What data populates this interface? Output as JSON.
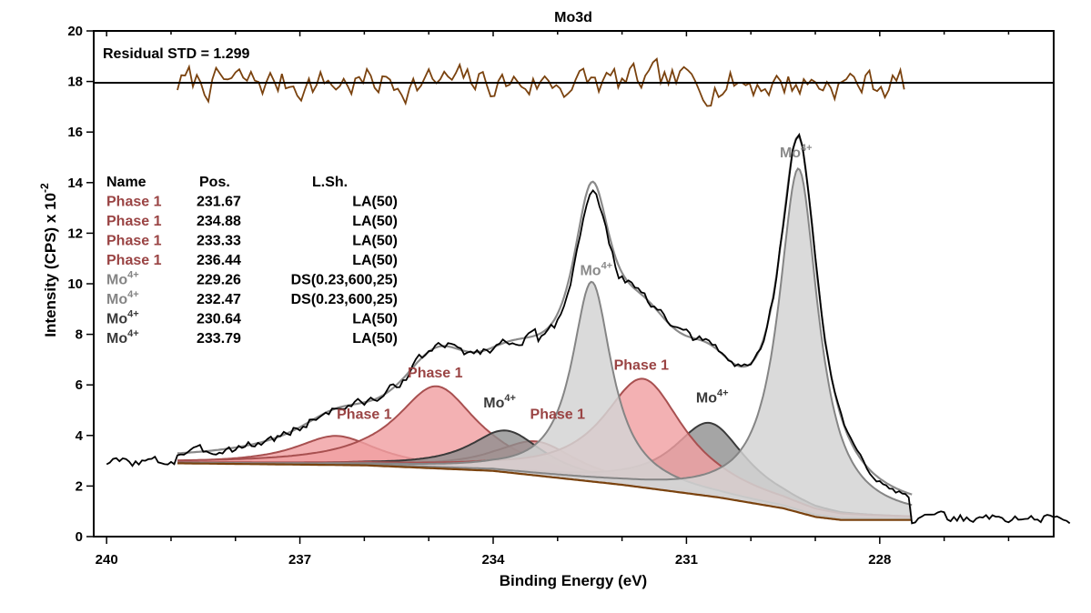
{
  "chart_data": {
    "type": "line",
    "title": "Mo3d",
    "xlabel": "Binding Energy (eV)",
    "ylabel_main": "Intensity (CPS) x 10",
    "ylabel_exp": "-2",
    "xlim": [
      240.2,
      225.3
    ],
    "ylim": [
      0,
      20
    ],
    "x_ticks": [
      240,
      237,
      234,
      231,
      228
    ],
    "x_minor_step": 1,
    "y_ticks": [
      0,
      2,
      4,
      6,
      8,
      10,
      12,
      14,
      16,
      18,
      20
    ],
    "residual_label": "Residual STD = 1.299",
    "residual_baseline": 17.95,
    "residual_range": [
      238.9,
      227.6
    ],
    "residual_seed": 7,
    "fit_range": [
      238.9,
      227.5
    ],
    "baseline_points": [
      [
        238.9,
        2.9
      ],
      [
        236.0,
        2.82
      ],
      [
        234.0,
        2.6
      ],
      [
        232.0,
        2.05
      ],
      [
        230.5,
        1.55
      ],
      [
        229.5,
        1.12
      ],
      [
        229.0,
        0.78
      ],
      [
        228.6,
        0.66
      ],
      [
        227.5,
        0.66
      ]
    ],
    "raw_range": [
      240.0,
      225.0
    ],
    "raw_seed": 3,
    "colors": {
      "phase1_fill": "#f0a0a2",
      "phase1_edge": "#a85050",
      "phase1_text": "#9a4444",
      "mo4_light_fill": "#d3d3d3",
      "mo4_light_edge": "#858585",
      "mo4_dark_fill": "#8e8e8e",
      "mo4_dark_edge": "#3a3a3a",
      "raw": "#000000",
      "envelope": "#8a8a8a",
      "residual": "#7a420e",
      "baseline": "#7a420e"
    },
    "components": [
      {
        "name": "Phase 1",
        "pos": 231.67,
        "fwhm": 1.55,
        "height": 4.3,
        "style": "phase1"
      },
      {
        "name": "Phase 1",
        "pos": 234.88,
        "fwhm": 1.55,
        "height": 3.25,
        "style": "phase1"
      },
      {
        "name": "Phase 1",
        "pos": 233.33,
        "fwhm": 1.55,
        "height": 1.35,
        "style": "phase1"
      },
      {
        "name": "Phase 1",
        "pos": 236.44,
        "fwhm": 1.55,
        "height": 1.15,
        "style": "phase1"
      },
      {
        "name": "Mo4+",
        "pos": 229.26,
        "fwhm": 0.75,
        "height": 13.6,
        "style": "mo4_light"
      },
      {
        "name": "Mo4+",
        "pos": 232.47,
        "fwhm": 0.75,
        "height": 7.9,
        "style": "mo4_light"
      },
      {
        "name": "Mo4+",
        "pos": 230.64,
        "fwhm": 1.4,
        "height": 2.9,
        "style": "mo4_dark"
      },
      {
        "name": "Mo4+",
        "pos": 233.79,
        "fwhm": 1.4,
        "height": 1.65,
        "style": "mo4_dark"
      }
    ]
  },
  "legend": {
    "headers": [
      "Name",
      "Pos.",
      "L.Sh."
    ],
    "rows": [
      {
        "base": "Phase 1",
        "sup": "",
        "pos": "231.67",
        "lsh": "LA(50)",
        "color": "#9a4444"
      },
      {
        "base": "Phase 1",
        "sup": "",
        "pos": "234.88",
        "lsh": "LA(50)",
        "color": "#9a4444"
      },
      {
        "base": "Phase 1",
        "sup": "",
        "pos": "233.33",
        "lsh": "LA(50)",
        "color": "#9a4444"
      },
      {
        "base": "Phase 1",
        "sup": "",
        "pos": "236.44",
        "lsh": "LA(50)",
        "color": "#9a4444"
      },
      {
        "base": "Mo",
        "sup": "4+",
        "pos": "229.26",
        "lsh": "DS(0.23,600,25)",
        "color": "#858585"
      },
      {
        "base": "Mo",
        "sup": "4+",
        "pos": "232.47",
        "lsh": "DS(0.23,600,25)",
        "color": "#858585"
      },
      {
        "base": "Mo",
        "sup": "4+",
        "pos": "230.64",
        "lsh": "LA(50)",
        "color": "#3a3a3a"
      },
      {
        "base": "Mo",
        "sup": "4+",
        "pos": "233.79",
        "lsh": "LA(50)",
        "color": "#3a3a3a"
      }
    ]
  },
  "annotations": [
    {
      "base": "Phase 1",
      "sup": "",
      "x": 236.0,
      "y": 4.65,
      "color": "#9a4444"
    },
    {
      "base": "Phase 1",
      "sup": "",
      "x": 234.9,
      "y": 6.3,
      "color": "#9a4444"
    },
    {
      "base": "Phase 1",
      "sup": "",
      "x": 233.0,
      "y": 4.65,
      "color": "#9a4444"
    },
    {
      "base": "Phase 1",
      "sup": "",
      "x": 231.7,
      "y": 6.6,
      "color": "#9a4444"
    },
    {
      "base": "Mo",
      "sup": "4+",
      "x": 233.9,
      "y": 5.1,
      "color": "#3a3a3a"
    },
    {
      "base": "Mo",
      "sup": "4+",
      "x": 230.6,
      "y": 5.3,
      "color": "#3a3a3a"
    },
    {
      "base": "Mo",
      "sup": "4+",
      "x": 232.4,
      "y": 10.35,
      "color": "#8a8a8a"
    },
    {
      "base": "Mo",
      "sup": "4+",
      "x": 229.3,
      "y": 15.0,
      "color": "#8a8a8a"
    }
  ]
}
